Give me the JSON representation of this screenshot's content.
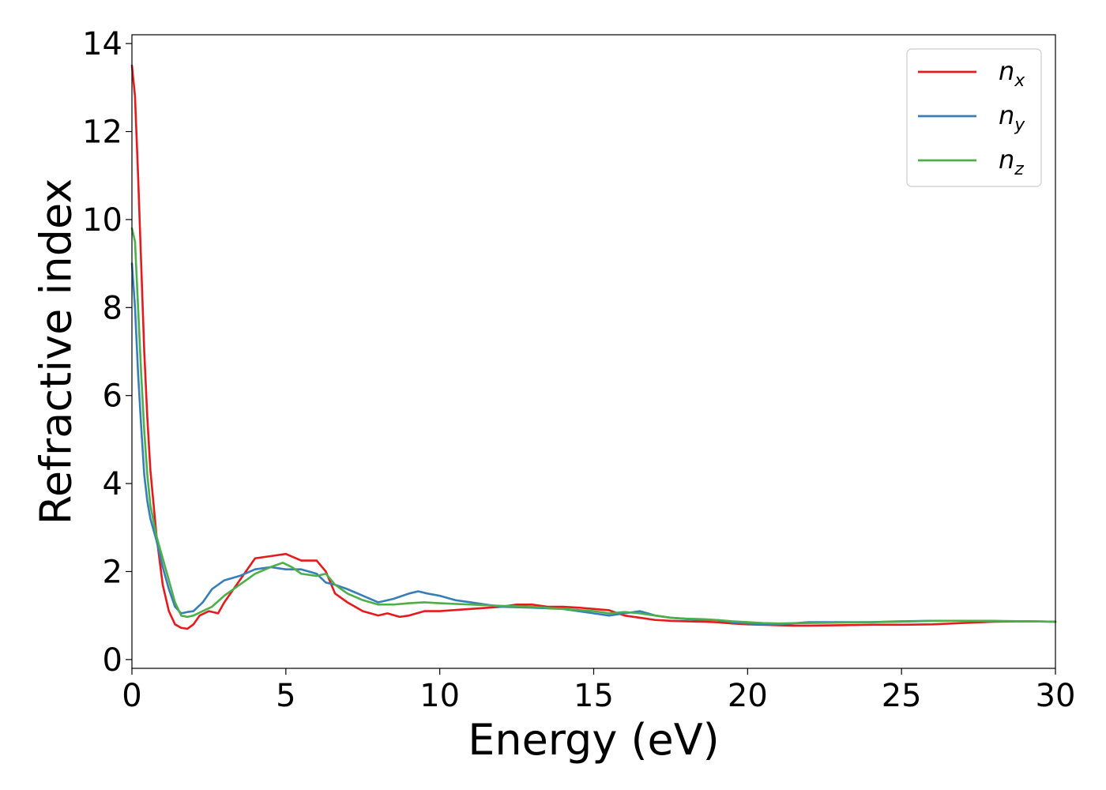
{
  "chart_data": {
    "type": "line",
    "title": "",
    "xlabel": "Energy (eV)",
    "ylabel": "Refractive index",
    "xlim": [
      0,
      30
    ],
    "ylim": [
      -0.2,
      14.2
    ],
    "xticks": [
      "0",
      "5",
      "10",
      "15",
      "20",
      "25",
      "30"
    ],
    "yticks": [
      "0",
      "2",
      "4",
      "6",
      "8",
      "10",
      "12",
      "14"
    ],
    "grid": false,
    "legend_position": "top-right",
    "series": [
      {
        "name": "n",
        "subscript": "x",
        "color": "#e41a1c",
        "x": [
          0,
          0.1,
          0.2,
          0.3,
          0.4,
          0.5,
          0.6,
          0.8,
          1.0,
          1.2,
          1.4,
          1.6,
          1.8,
          2.0,
          2.2,
          2.5,
          2.8,
          3.0,
          3.5,
          4.0,
          4.5,
          5.0,
          5.5,
          6.0,
          6.3,
          6.6,
          7.0,
          7.5,
          8.0,
          8.3,
          8.7,
          9.0,
          9.5,
          10,
          11,
          12,
          12.5,
          13,
          13.5,
          14,
          14.5,
          15,
          15.5,
          16,
          16.5,
          17,
          17.5,
          18,
          18.5,
          19,
          19.5,
          20,
          20.5,
          21,
          21.5,
          22,
          23,
          24,
          25,
          26,
          27,
          28,
          29,
          30
        ],
        "y": [
          13.5,
          12.8,
          11.0,
          9.0,
          7.0,
          5.5,
          4.3,
          2.8,
          1.7,
          1.1,
          0.8,
          0.72,
          0.7,
          0.8,
          1.0,
          1.1,
          1.05,
          1.3,
          1.8,
          2.3,
          2.35,
          2.4,
          2.25,
          2.25,
          2.0,
          1.5,
          1.3,
          1.1,
          1.0,
          1.05,
          0.97,
          1.0,
          1.1,
          1.1,
          1.15,
          1.2,
          1.25,
          1.25,
          1.2,
          1.2,
          1.18,
          1.15,
          1.12,
          1.0,
          0.95,
          0.9,
          0.88,
          0.87,
          0.86,
          0.85,
          0.82,
          0.8,
          0.79,
          0.78,
          0.77,
          0.77,
          0.78,
          0.79,
          0.79,
          0.8,
          0.83,
          0.86,
          0.87,
          0.86
        ]
      },
      {
        "name": "n",
        "subscript": "y",
        "color": "#377eb8",
        "x": [
          0,
          0.1,
          0.2,
          0.3,
          0.4,
          0.5,
          0.6,
          0.8,
          1.0,
          1.2,
          1.4,
          1.6,
          1.8,
          2.0,
          2.3,
          2.6,
          3.0,
          3.5,
          4.0,
          4.5,
          5.0,
          5.5,
          6.0,
          6.3,
          6.6,
          7.0,
          7.5,
          8.0,
          8.5,
          9.0,
          9.3,
          9.6,
          10,
          10.5,
          11,
          11.5,
          12,
          13,
          14,
          15,
          15.5,
          16,
          16.5,
          17,
          17.5,
          18,
          18.5,
          19,
          19.5,
          20,
          20.5,
          21,
          22,
          23,
          24,
          25,
          26,
          27,
          28,
          29,
          30
        ],
        "y": [
          9.0,
          8.0,
          6.5,
          5.3,
          4.2,
          3.6,
          3.2,
          2.7,
          2.1,
          1.6,
          1.2,
          1.05,
          1.08,
          1.1,
          1.3,
          1.6,
          1.8,
          1.9,
          2.05,
          2.1,
          2.05,
          2.05,
          1.95,
          1.75,
          1.7,
          1.6,
          1.45,
          1.3,
          1.38,
          1.5,
          1.55,
          1.5,
          1.45,
          1.35,
          1.3,
          1.25,
          1.2,
          1.18,
          1.15,
          1.05,
          1.0,
          1.05,
          1.1,
          1.0,
          0.95,
          0.92,
          0.9,
          0.9,
          0.85,
          0.82,
          0.8,
          0.8,
          0.85,
          0.85,
          0.85,
          0.87,
          0.88,
          0.88,
          0.87,
          0.87,
          0.86
        ]
      },
      {
        "name": "n",
        "subscript": "z",
        "color": "#4daf4a",
        "x": [
          0,
          0.1,
          0.2,
          0.3,
          0.4,
          0.5,
          0.6,
          0.8,
          1.0,
          1.2,
          1.4,
          1.6,
          1.8,
          2.0,
          2.3,
          2.6,
          3.0,
          3.5,
          4.0,
          4.5,
          4.9,
          5.2,
          5.5,
          6.0,
          6.3,
          6.6,
          7.0,
          7.5,
          8.0,
          8.5,
          9.0,
          9.5,
          10,
          11,
          12,
          13,
          14,
          15,
          15.5,
          16,
          16.5,
          17,
          17.5,
          18,
          18.5,
          19,
          19.5,
          20,
          20.5,
          21,
          22,
          23,
          24,
          25,
          26,
          27,
          28,
          29,
          30
        ],
        "y": [
          9.8,
          9.5,
          8.0,
          6.5,
          5.2,
          4.2,
          3.5,
          2.8,
          2.3,
          1.8,
          1.3,
          1.0,
          0.97,
          1.0,
          1.1,
          1.2,
          1.45,
          1.7,
          1.95,
          2.1,
          2.2,
          2.1,
          1.95,
          1.9,
          1.95,
          1.7,
          1.5,
          1.35,
          1.25,
          1.25,
          1.28,
          1.3,
          1.28,
          1.25,
          1.22,
          1.2,
          1.15,
          1.1,
          1.05,
          1.08,
          1.05,
          1.0,
          0.95,
          0.93,
          0.92,
          0.9,
          0.87,
          0.85,
          0.83,
          0.82,
          0.83,
          0.84,
          0.85,
          0.86,
          0.88,
          0.88,
          0.88,
          0.87,
          0.86
        ]
      }
    ]
  }
}
